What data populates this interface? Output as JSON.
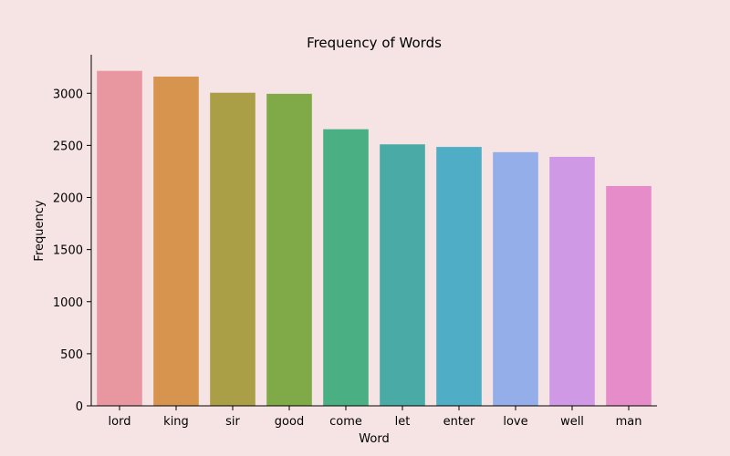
{
  "chart_data": {
    "type": "bar",
    "title": "Frequency of Words",
    "xlabel": "Word",
    "ylabel": "Frequency",
    "categories": [
      "lord",
      "king",
      "sir",
      "good",
      "come",
      "let",
      "enter",
      "love",
      "well",
      "man"
    ],
    "values": [
      3215,
      3160,
      3005,
      2995,
      2655,
      2510,
      2485,
      2435,
      2390,
      2110
    ],
    "ylim": [
      0,
      3370
    ],
    "yticks": [
      0,
      500,
      1000,
      1500,
      2000,
      2500,
      3000
    ],
    "grid": false,
    "legend": "none",
    "colors": [
      "#e8969f",
      "#d6944e",
      "#aa9e46",
      "#7faa47",
      "#4baf84",
      "#4aaaa5",
      "#4fadc6",
      "#93aee8",
      "#cf99e6",
      "#e68cc9"
    ],
    "background": "#f6e4e5"
  }
}
